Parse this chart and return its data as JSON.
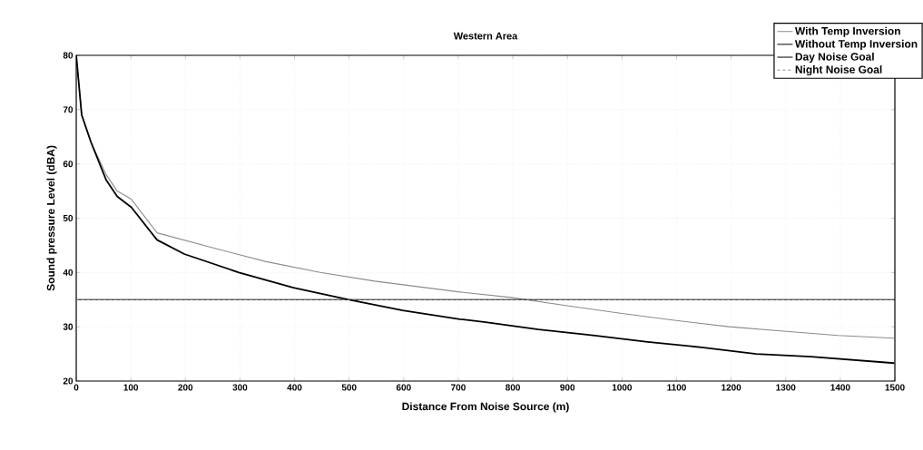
{
  "chart_data": {
    "type": "line",
    "title": "Western Area",
    "xlabel": "Distance From Noise Source (m)",
    "ylabel": "Sound pressure Level (dBA)",
    "xlim": [
      0,
      1500
    ],
    "ylim": [
      20,
      80
    ],
    "xticks": [
      0,
      100,
      200,
      300,
      400,
      500,
      600,
      700,
      800,
      900,
      1000,
      1100,
      1200,
      1300,
      1400,
      1500
    ],
    "yticks": [
      20,
      30,
      40,
      50,
      60,
      70,
      80
    ],
    "grid": true,
    "legend": "top right",
    "marker": "none",
    "series": [
      {
        "name": "With Temp Inversion",
        "color": "#8c8c8c",
        "line_style": "solid",
        "x": [
          0,
          10,
          27,
          55,
          75,
          101,
          148,
          248,
          348,
          447,
          547,
          703,
          797,
          897,
          997,
          1096,
          1196,
          1296,
          1396,
          1499
        ],
        "values": [
          80,
          69,
          64,
          58,
          55,
          53.5,
          47.3,
          44.6,
          42,
          40,
          38.4,
          36.4,
          35.4,
          33.9,
          32.5,
          31.2,
          30,
          29.2,
          28.4,
          27.9
        ]
      },
      {
        "name": "Without Temp Inversion",
        "color": "#000000",
        "line_style": "solid",
        "x": [
          0,
          10,
          27,
          55,
          75,
          101,
          148,
          198,
          298,
          398,
          498,
          598,
          703,
          747,
          847,
          947,
          1047,
          1146,
          1246,
          1346,
          1499
        ],
        "values": [
          80,
          69,
          64,
          57,
          54,
          52,
          46,
          43.4,
          40,
          37.2,
          35,
          33,
          31.4,
          30.9,
          29.5,
          28.4,
          27.2,
          26.2,
          25,
          24.5,
          23.3
        ]
      },
      {
        "name": "Day Noise Goal",
        "color": "#000000",
        "line_style": "solid",
        "x": [
          0,
          1500
        ],
        "values": [
          35,
          35
        ]
      },
      {
        "name": "Night Noise Goal",
        "color": "#8c8c8c",
        "line_style": "dashed",
        "x": [
          0,
          1500
        ],
        "values": [
          35,
          35
        ]
      }
    ]
  }
}
